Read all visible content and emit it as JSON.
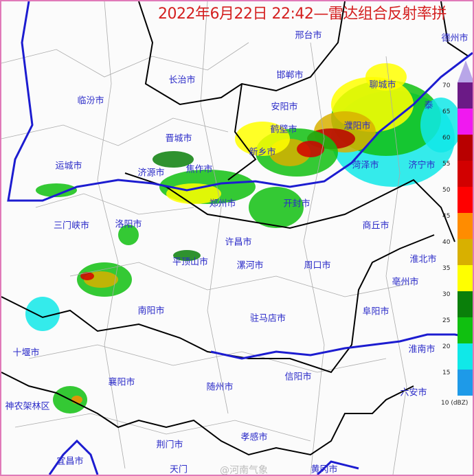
{
  "title": "2022年6月22日 22:42—雷达组合反射率拼",
  "watermark": "@河南气象",
  "cities": [
    {
      "name": "邢台市"
    },
    {
      "name": "德州市"
    },
    {
      "name": "长治市"
    },
    {
      "name": "邯郸市"
    },
    {
      "name": "临汾市"
    },
    {
      "name": "聊城市"
    },
    {
      "name": "安阳市"
    },
    {
      "name": "鹤壁市"
    },
    {
      "name": "濮阳市"
    },
    {
      "name": "晋城市"
    },
    {
      "name": "新乡市"
    },
    {
      "name": "泰"
    },
    {
      "name": "菏泽市"
    },
    {
      "name": "济宁市"
    },
    {
      "name": "运城市"
    },
    {
      "name": "济源市"
    },
    {
      "name": "焦作市"
    },
    {
      "name": "郑州市"
    },
    {
      "name": "开封市"
    },
    {
      "name": "三门峡市"
    },
    {
      "name": "洛阳市"
    },
    {
      "name": "商丘市"
    },
    {
      "name": "许昌市"
    },
    {
      "name": "平顶山市"
    },
    {
      "name": "漯河市"
    },
    {
      "name": "周口市"
    },
    {
      "name": "淮北市"
    },
    {
      "name": "亳州市"
    },
    {
      "name": "南阳市"
    },
    {
      "name": "阜阳市"
    },
    {
      "name": "驻马店市"
    },
    {
      "name": "十堰市"
    },
    {
      "name": "淮南市"
    },
    {
      "name": "信阳市"
    },
    {
      "name": "襄阳市"
    },
    {
      "name": "随州市"
    },
    {
      "name": "六安市"
    },
    {
      "name": "神农架林区"
    },
    {
      "name": "荆门市"
    },
    {
      "name": "孝感市"
    },
    {
      "name": "宜昌市"
    },
    {
      "name": "天门"
    },
    {
      "name": "黄冈市"
    }
  ],
  "legend": {
    "unit": "(dBZ)",
    "top_color": "#b8a6e8",
    "bands": [
      {
        "label": "70",
        "color": "#6b1a86"
      },
      {
        "label": "65",
        "color": "#f019f0"
      },
      {
        "label": "60",
        "color": "#b80000"
      },
      {
        "label": "55",
        "color": "#d20000"
      },
      {
        "label": "50",
        "color": "#ff0000"
      },
      {
        "label": "45",
        "color": "#ff8c00"
      },
      {
        "label": "40",
        "color": "#d8b000"
      },
      {
        "label": "35",
        "color": "#ffff00"
      },
      {
        "label": "30",
        "color": "#0a7f0a"
      },
      {
        "label": "25",
        "color": "#10c010"
      },
      {
        "label": "20",
        "color": "#10e8e8"
      },
      {
        "label": "15",
        "color": "#1e9ae8"
      }
    ],
    "bottom_label": "10"
  }
}
